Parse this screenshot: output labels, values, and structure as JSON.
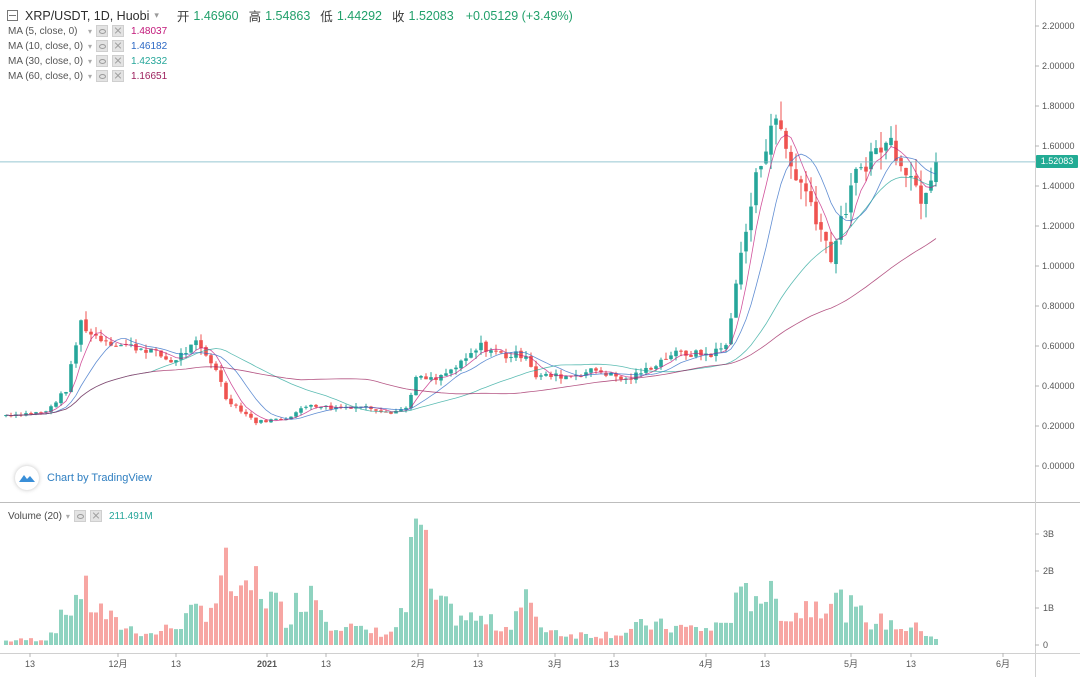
{
  "header": {
    "symbol": "XRP/USDT, 1D, Huobi",
    "open_label": "开",
    "open": "1.46960",
    "high_label": "高",
    "high": "1.54863",
    "low_label": "低",
    "low": "1.44292",
    "close_label": "收",
    "close": "1.52083",
    "change": "+0.05129 (+3.49%)"
  },
  "indicators": [
    {
      "label": "MA (5, close, 0)",
      "value": "1.48037",
      "color": "#c2187a"
    },
    {
      "label": "MA (10, close, 0)",
      "value": "1.46182",
      "color": "#2c68c4"
    },
    {
      "label": "MA (30, close, 0)",
      "value": "1.42332",
      "color": "#26a69a"
    },
    {
      "label": "MA (60, close, 0)",
      "value": "1.16651",
      "color": "#9c1f5c"
    }
  ],
  "volume_indicator": {
    "label": "Volume (20)",
    "value": "211.491M"
  },
  "watermark": {
    "text": "Chart by TradingView"
  },
  "price_axis": {
    "labels": [
      "2.20000",
      "2.00000",
      "1.80000",
      "1.60000",
      "1.40000",
      "1.20000",
      "1.00000",
      "0.80000",
      "0.60000",
      "0.40000",
      "0.20000",
      "0.00000"
    ],
    "current_price_label": "1.52083"
  },
  "volume_axis": {
    "labels": [
      "3B",
      "2B",
      "1B",
      "0"
    ]
  },
  "time_axis": {
    "labels": [
      "13",
      "12月",
      "13",
      "2021",
      "13",
      "2月",
      "13",
      "3月",
      "13",
      "4月",
      "13",
      "5月",
      "13",
      "6月"
    ]
  },
  "colors": {
    "up": "#26a69a",
    "down": "#ef5350",
    "up_vol": "#8fd3c0",
    "down_vol": "#f7a6a3",
    "current_line": "#7fb9c8"
  },
  "chart_data": {
    "type": "candlestick",
    "symbol": "XRP/USDT",
    "interval": "1D",
    "exchange": "Huobi",
    "ylim": [
      -0.1,
      2.25
    ],
    "volume_ylim": [
      0,
      3.7
    ],
    "volume_unit": "B",
    "current_price": 1.52083,
    "x_ticks": [
      "13",
      "12月",
      "13",
      "2021",
      "13",
      "2月",
      "13",
      "3月",
      "13",
      "4月",
      "13",
      "5月",
      "13",
      "6月"
    ],
    "anchor_points": [
      {
        "bar": 0,
        "price": 0.255,
        "vol": 0.12
      },
      {
        "bar": 8,
        "price": 0.27,
        "vol": 0.18
      },
      {
        "bar": 12,
        "price": 0.38,
        "vol": 0.9
      },
      {
        "bar": 15,
        "price": 0.72,
        "vol": 1.6
      },
      {
        "bar": 17,
        "price": 0.66,
        "vol": 1.2
      },
      {
        "bar": 22,
        "price": 0.61,
        "vol": 0.6
      },
      {
        "bar": 29,
        "price": 0.58,
        "vol": 0.3
      },
      {
        "bar": 33,
        "price": 0.52,
        "vol": 0.5
      },
      {
        "bar": 38,
        "price": 0.61,
        "vol": 0.9
      },
      {
        "bar": 42,
        "price": 0.49,
        "vol": 1.3
      },
      {
        "bar": 44,
        "price": 0.34,
        "vol": 2.0
      },
      {
        "bar": 47,
        "price": 0.28,
        "vol": 1.2
      },
      {
        "bar": 50,
        "price": 0.22,
        "vol": 1.8
      },
      {
        "bar": 56,
        "price": 0.24,
        "vol": 0.8
      },
      {
        "bar": 61,
        "price": 0.31,
        "vol": 1.7
      },
      {
        "bar": 65,
        "price": 0.29,
        "vol": 0.7
      },
      {
        "bar": 71,
        "price": 0.3,
        "vol": 0.4
      },
      {
        "bar": 77,
        "price": 0.27,
        "vol": 0.35
      },
      {
        "bar": 80,
        "price": 0.29,
        "vol": 1.0
      },
      {
        "bar": 82,
        "price": 0.44,
        "vol": 3.6
      },
      {
        "bar": 86,
        "price": 0.43,
        "vol": 1.1
      },
      {
        "bar": 91,
        "price": 0.51,
        "vol": 0.8
      },
      {
        "bar": 95,
        "price": 0.6,
        "vol": 0.7
      },
      {
        "bar": 100,
        "price": 0.55,
        "vol": 0.5
      },
      {
        "bar": 104,
        "price": 0.56,
        "vol": 1.4
      },
      {
        "bar": 106,
        "price": 0.45,
        "vol": 0.6
      },
      {
        "bar": 112,
        "price": 0.45,
        "vol": 0.3
      },
      {
        "bar": 118,
        "price": 0.48,
        "vol": 0.3
      },
      {
        "bar": 124,
        "price": 0.43,
        "vol": 0.35
      },
      {
        "bar": 128,
        "price": 0.48,
        "vol": 0.6
      },
      {
        "bar": 133,
        "price": 0.56,
        "vol": 0.5
      },
      {
        "bar": 141,
        "price": 0.56,
        "vol": 0.45
      },
      {
        "bar": 144,
        "price": 0.6,
        "vol": 0.7
      },
      {
        "bar": 146,
        "price": 0.92,
        "vol": 1.1
      },
      {
        "bar": 150,
        "price": 1.43,
        "vol": 1.6
      },
      {
        "bar": 153,
        "price": 1.72,
        "vol": 1.3
      },
      {
        "bar": 155,
        "price": 1.68,
        "vol": 1.1
      },
      {
        "bar": 157,
        "price": 1.5,
        "vol": 0.8
      },
      {
        "bar": 161,
        "price": 1.32,
        "vol": 1.2
      },
      {
        "bar": 165,
        "price": 1.05,
        "vol": 1.4
      },
      {
        "bar": 170,
        "price": 1.45,
        "vol": 0.9
      },
      {
        "bar": 173,
        "price": 1.56,
        "vol": 0.7
      },
      {
        "bar": 177,
        "price": 1.62,
        "vol": 0.6
      },
      {
        "bar": 180,
        "price": 1.5,
        "vol": 0.5
      },
      {
        "bar": 183,
        "price": 1.35,
        "vol": 0.45
      },
      {
        "bar": 186,
        "price": 1.52,
        "vol": 0.2
      }
    ]
  }
}
